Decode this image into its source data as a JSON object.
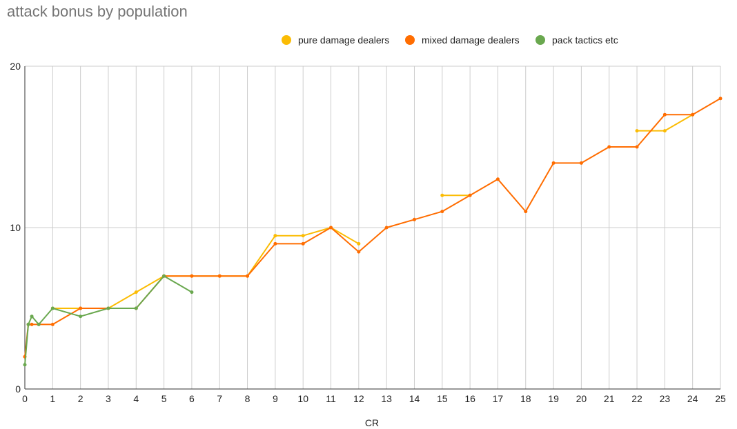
{
  "chart_data": {
    "type": "line",
    "title": "attack bonus by population",
    "xlabel": "CR",
    "ylabel": "",
    "xlim": [
      0,
      25
    ],
    "ylim": [
      0,
      20
    ],
    "x_ticks": [
      0,
      1,
      2,
      3,
      4,
      5,
      6,
      7,
      8,
      9,
      10,
      11,
      12,
      13,
      14,
      15,
      16,
      17,
      18,
      19,
      20,
      21,
      22,
      23,
      24,
      25
    ],
    "y_ticks": [
      0,
      10,
      20
    ],
    "grid": true,
    "legend_position": "top",
    "series": [
      {
        "name": "pure damage dealers",
        "color": "#FBBC04",
        "points": [
          [
            1,
            5
          ],
          [
            2,
            5
          ],
          [
            3,
            5
          ],
          [
            4,
            6
          ],
          [
            5,
            7
          ],
          [
            6,
            7
          ],
          [
            7,
            7
          ],
          [
            8,
            7
          ],
          [
            9,
            9.5
          ],
          [
            10,
            9.5
          ],
          [
            11,
            10
          ],
          [
            12,
            9
          ],
          null,
          [
            15,
            12
          ],
          [
            16,
            12
          ],
          null,
          [
            22,
            16
          ],
          [
            23,
            16
          ],
          [
            24,
            17
          ]
        ]
      },
      {
        "name": "mixed damage dealers",
        "color": "#FF6D01",
        "points": [
          [
            0,
            2
          ],
          [
            0.125,
            4
          ],
          [
            0.25,
            4
          ],
          [
            0.5,
            4
          ],
          [
            1,
            4
          ],
          [
            2,
            5
          ],
          [
            3,
            5
          ],
          [
            4,
            5
          ],
          [
            5,
            7
          ],
          [
            6,
            7
          ],
          [
            7,
            7
          ],
          [
            8,
            7
          ],
          [
            9,
            9
          ],
          [
            10,
            9
          ],
          [
            11,
            10
          ],
          [
            12,
            8.5
          ],
          [
            13,
            10
          ],
          [
            14,
            10.5
          ],
          [
            15,
            11
          ],
          [
            16,
            12
          ],
          [
            17,
            13
          ],
          [
            18,
            11
          ],
          [
            19,
            14
          ],
          [
            20,
            14
          ],
          [
            21,
            15
          ],
          [
            22,
            15
          ],
          [
            23,
            17
          ],
          [
            24,
            17
          ],
          [
            25,
            18
          ]
        ]
      },
      {
        "name": "pack tactics etc",
        "color": "#6AA84F",
        "points": [
          [
            0,
            1.5
          ],
          [
            0.125,
            4
          ],
          [
            0.25,
            4.5
          ],
          [
            0.5,
            4
          ],
          [
            1,
            5
          ],
          [
            2,
            4.5
          ],
          [
            3,
            5
          ],
          [
            4,
            5
          ],
          [
            5,
            7
          ],
          [
            6,
            6
          ]
        ]
      }
    ]
  }
}
